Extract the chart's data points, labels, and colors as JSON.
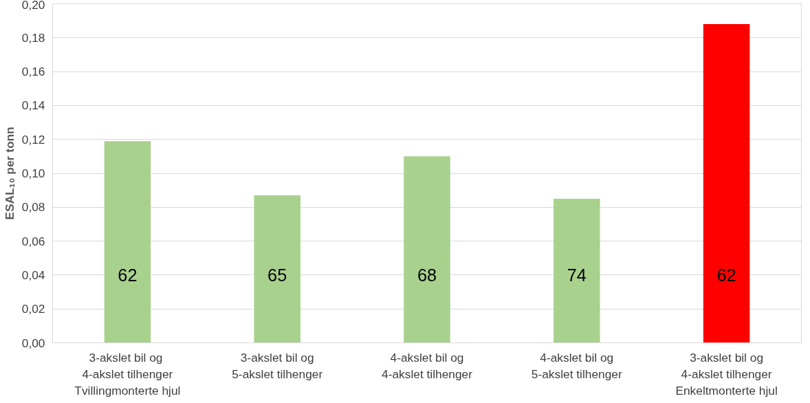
{
  "chart_data": {
    "type": "bar",
    "ylabel": "ESAL₁₀ per tonn",
    "categories": [
      "3-akslet bil  og\n4-akslet tilhenger\nTvillingmonterte hjul",
      "3-akslet bil og\n5-akslet tilhenger",
      "4-akslet bil og\n4-akslet tilhenger",
      "4-akslet bil og\n5-akslet tilhenger",
      "3-akslet bil og\n4-akslet tilhenger\nEnkeltmonterte hjul"
    ],
    "values": [
      0.119,
      0.087,
      0.11,
      0.085,
      0.188
    ],
    "colors": [
      "#a9d18e",
      "#a9d18e",
      "#a9d18e",
      "#a9d18e",
      "#ff0000"
    ],
    "ylim": [
      0,
      0.2
    ],
    "yticks": [
      {
        "value": 0,
        "label": "0,00"
      },
      {
        "value": 0.02,
        "label": "0,02"
      },
      {
        "value": 0.04,
        "label": "0,04"
      },
      {
        "value": 0.06,
        "label": "0,06"
      },
      {
        "value": 0.08,
        "label": "0,08"
      },
      {
        "value": 0.1,
        "label": "0,10"
      },
      {
        "value": 0.12,
        "label": "0,12"
      },
      {
        "value": 0.14,
        "label": "0,14"
      },
      {
        "value": 0.16,
        "label": "0,16"
      },
      {
        "value": 0.18,
        "label": "0,18"
      },
      {
        "value": 0.2,
        "label": "0,20"
      }
    ],
    "grid": "y",
    "annotations": [
      "62",
      "65",
      "68",
      "74",
      "62"
    ]
  }
}
